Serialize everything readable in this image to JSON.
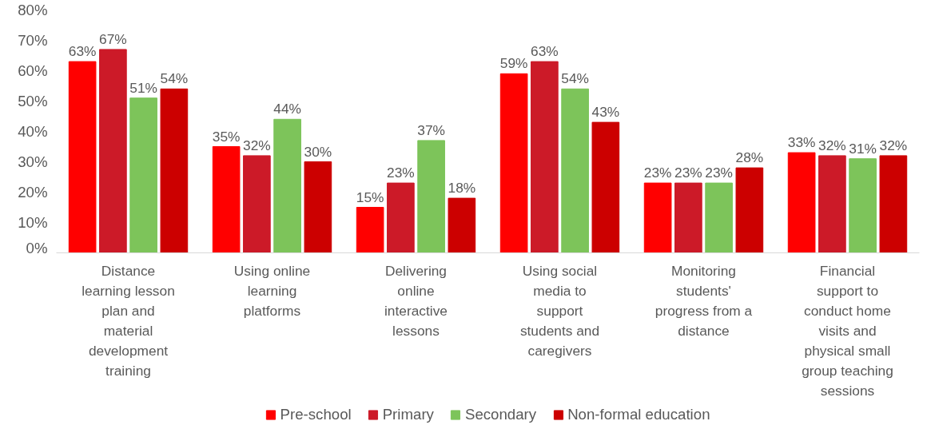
{
  "chart_data": {
    "type": "bar",
    "categories": [
      "Distance learning lesson plan and material development training",
      "Using online learning platforms",
      "Delivering online interactive lessons",
      "Using social media to support students and caregivers",
      "Monitoring students' progress from a distance",
      "Financial support to conduct home visits and physical small group teaching sessions"
    ],
    "series": [
      {
        "name": "Pre-school",
        "color": "#ff0000",
        "values": [
          63,
          35,
          15,
          59,
          23,
          33
        ],
        "value_labels": [
          "63%",
          "35%",
          "15%",
          "59%",
          "23%",
          "33%"
        ]
      },
      {
        "name": "Primary",
        "color": "#cc1a28",
        "values": [
          67,
          32,
          23,
          63,
          23,
          32
        ],
        "value_labels": [
          "67%",
          "32%",
          "23%",
          "63%",
          "23%",
          "32%"
        ]
      },
      {
        "name": "Secondary",
        "color": "#7dc45a",
        "values": [
          51,
          44,
          37,
          54,
          23,
          31
        ],
        "value_labels": [
          "51%",
          "44%",
          "37%",
          "54%",
          "23%",
          "31%"
        ]
      },
      {
        "name": "Non-formal education",
        "color": "#cc0000",
        "values": [
          54,
          30,
          18,
          43,
          28,
          32
        ],
        "value_labels": [
          "54%",
          "30%",
          "18%",
          "43%",
          "28%",
          "32%"
        ]
      }
    ],
    "ylim": [
      0,
      80
    ],
    "yticks": [
      {
        "value": 0,
        "label": "0%"
      },
      {
        "value": 10,
        "label": "10%"
      },
      {
        "value": 20,
        "label": "20%"
      },
      {
        "value": 30,
        "label": "30%"
      },
      {
        "value": 40,
        "label": "40%"
      },
      {
        "value": 50,
        "label": "50%"
      },
      {
        "value": 60,
        "label": "60%"
      },
      {
        "value": 70,
        "label": "70%"
      },
      {
        "value": 80,
        "label": "80%"
      }
    ],
    "grid": false,
    "legend": "bottom"
  }
}
